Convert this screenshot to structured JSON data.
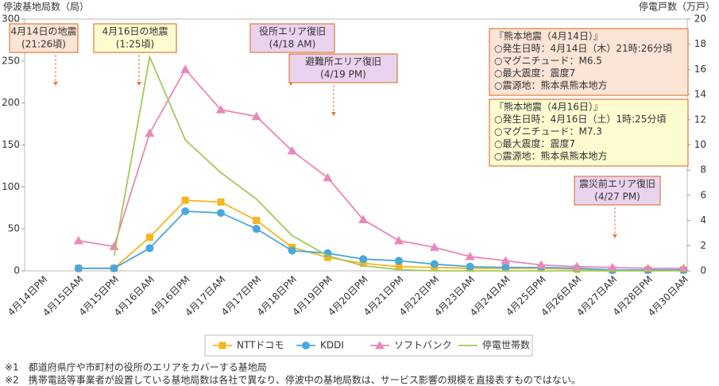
{
  "chart_data": {
    "type": "line",
    "y_label": "停波基地局数（局）",
    "y2_label": "停電戸数（万戸）",
    "categories": [
      "4月14日PM",
      "4月15日AM",
      "4月15日PM",
      "4月16日AM",
      "4月16日PM",
      "4月17日AM",
      "4月17日PM",
      "4月18日PM",
      "4月19日PM",
      "4月20日PM",
      "4月21日PM",
      "4月22日PM",
      "4月23日AM",
      "4月24日AM",
      "4月25日PM",
      "4月26日AM",
      "4月27日AM",
      "4月28日PM",
      "4月30日AM"
    ],
    "series": [
      {
        "name": "NTTドコモ",
        "color": "#f5b51d",
        "marker": "square",
        "values": [
          null,
          3,
          3,
          40,
          84,
          82,
          60,
          28,
          16,
          9,
          5,
          4,
          3,
          3,
          3,
          2,
          1,
          1,
          1
        ]
      },
      {
        "name": "KDDI",
        "color": "#4aa8dc",
        "marker": "circle",
        "values": [
          null,
          3,
          3,
          27,
          71,
          69,
          50,
          24,
          21,
          14,
          12,
          8,
          5,
          4,
          4,
          3,
          1,
          1,
          1
        ]
      },
      {
        "name": "ソフトバンク",
        "color": "#ea87b8",
        "marker": "triangle",
        "values": [
          null,
          36,
          29,
          164,
          240,
          192,
          184,
          143,
          111,
          61,
          36,
          28,
          17,
          12,
          7,
          5,
          4,
          3,
          3
        ]
      },
      {
        "name": "停電世帯数",
        "color": "#a3c95a",
        "marker": "none",
        "axis": "y2",
        "values": [
          null,
          null,
          1.2,
          17,
          10.4,
          7.8,
          5.7,
          2.8,
          1.2,
          0.4,
          0.1,
          0,
          0,
          0,
          0,
          0,
          0,
          0,
          0
        ]
      }
    ],
    "ylim": [
      0,
      300
    ],
    "yticks": [
      0,
      50,
      100,
      150,
      200,
      250,
      300
    ],
    "y2lim": [
      0,
      20
    ],
    "y2ticks": [
      0,
      2,
      4,
      6,
      8,
      10,
      12,
      14,
      16,
      18,
      20
    ],
    "annotations": [
      {
        "lines": [
          "4月14日の地震",
          "(21:26頃)"
        ],
        "color": "#fce4d6"
      },
      {
        "lines": [
          "4月16日の地震",
          "(1:25頃)"
        ],
        "color": "#fffbd0"
      },
      {
        "lines": [
          "役所エリア復旧",
          "(4/18 AM)"
        ],
        "color": "#ead3ef"
      },
      {
        "lines": [
          "避難所エリア復旧",
          "(4/19 PM)"
        ],
        "color": "#ead3ef"
      },
      {
        "lines": [
          "『熊本地震（4月14日）』",
          "○発生日時：4月14日（木）21時:26分頃",
          "○マグニチュード：M6.5",
          "○最大震度：震度7",
          "○震源地：熊本県熊本地方"
        ],
        "color": "#fce4d6"
      },
      {
        "lines": [
          "『熊本地震（4月16日）』",
          "○発生日時：4月16日（土）1時:25分頃",
          "○マグニチュード：M7.3",
          "○最大震度：震度7",
          "○震源地：熊本県熊本地方"
        ],
        "color": "#fffbd0"
      },
      {
        "lines": [
          "震災前エリア復旧",
          "(4/27 PM)"
        ],
        "color": "#ead3ef"
      }
    ],
    "notes": [
      "※1　都道府県庁や市町村の役所のエリアをカバーする基地局",
      "※2　携帯電話等事業者が設置している基地局数は各社で異なり、停波中の基地局数は、サービス影響の規模を直接表すものではない。"
    ]
  }
}
